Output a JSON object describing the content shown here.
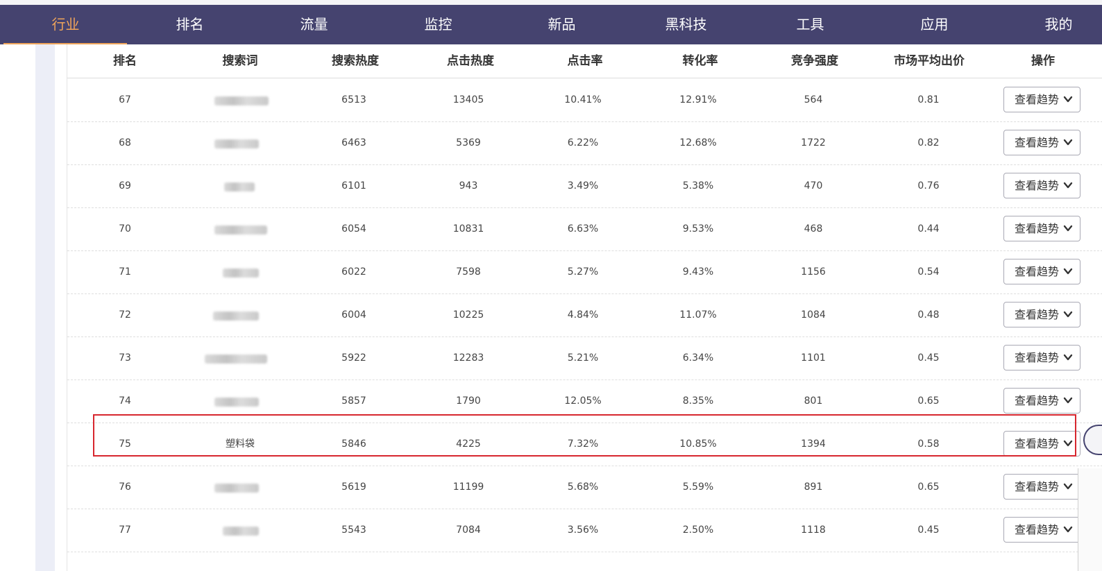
{
  "nav": {
    "items": [
      {
        "label": "行业",
        "active": true
      },
      {
        "label": "排名",
        "active": false
      },
      {
        "label": "流量",
        "active": false
      },
      {
        "label": "监控",
        "active": false
      },
      {
        "label": "新品",
        "active": false
      },
      {
        "label": "黑科技",
        "active": false
      },
      {
        "label": "工具",
        "active": false
      },
      {
        "label": "应用",
        "active": false
      },
      {
        "label": "我的",
        "active": false
      }
    ],
    "active_color": "#f0a55a",
    "bg_color": "#45436f"
  },
  "table": {
    "headers": [
      "排名",
      "搜索词",
      "搜索热度",
      "点击热度",
      "点击率",
      "转化率",
      "竞争强度",
      "市场平均出价",
      "操作"
    ],
    "action_label": "查看趋势",
    "action_icon": "chevron-down-icon",
    "rows": [
      {
        "rank": "67",
        "keyword": "",
        "search_heat": "6513",
        "click_heat": "13405",
        "ctr": "10.41%",
        "cvr": "12.91%",
        "competition": "564",
        "avg_bid": "0.81"
      },
      {
        "rank": "68",
        "keyword": "",
        "search_heat": "6463",
        "click_heat": "5369",
        "ctr": "6.22%",
        "cvr": "12.68%",
        "competition": "1722",
        "avg_bid": "0.82"
      },
      {
        "rank": "69",
        "keyword": "",
        "search_heat": "6101",
        "click_heat": "943",
        "ctr": "3.49%",
        "cvr": "5.38%",
        "competition": "470",
        "avg_bid": "0.76"
      },
      {
        "rank": "70",
        "keyword": "",
        "search_heat": "6054",
        "click_heat": "10831",
        "ctr": "6.63%",
        "cvr": "9.53%",
        "competition": "468",
        "avg_bid": "0.44"
      },
      {
        "rank": "71",
        "keyword": "",
        "search_heat": "6022",
        "click_heat": "7598",
        "ctr": "5.27%",
        "cvr": "9.43%",
        "competition": "1156",
        "avg_bid": "0.54"
      },
      {
        "rank": "72",
        "keyword": "",
        "search_heat": "6004",
        "click_heat": "10225",
        "ctr": "4.84%",
        "cvr": "11.07%",
        "competition": "1084",
        "avg_bid": "0.48"
      },
      {
        "rank": "73",
        "keyword": "",
        "search_heat": "5922",
        "click_heat": "12283",
        "ctr": "5.21%",
        "cvr": "6.34%",
        "competition": "1101",
        "avg_bid": "0.45"
      },
      {
        "rank": "74",
        "keyword": "",
        "search_heat": "5857",
        "click_heat": "1790",
        "ctr": "12.05%",
        "cvr": "8.35%",
        "competition": "801",
        "avg_bid": "0.65"
      },
      {
        "rank": "75",
        "keyword": "塑料袋",
        "search_heat": "5846",
        "click_heat": "4225",
        "ctr": "7.32%",
        "cvr": "10.85%",
        "competition": "1394",
        "avg_bid": "0.58",
        "highlighted": true
      },
      {
        "rank": "76",
        "keyword": "",
        "search_heat": "5619",
        "click_heat": "11199",
        "ctr": "5.68%",
        "cvr": "5.59%",
        "competition": "891",
        "avg_bid": "0.65"
      },
      {
        "rank": "77",
        "keyword": "",
        "search_heat": "5543",
        "click_heat": "7084",
        "ctr": "3.56%",
        "cvr": "2.50%",
        "competition": "1118",
        "avg_bid": "0.45"
      }
    ],
    "highlight_color": "#d7262e"
  }
}
